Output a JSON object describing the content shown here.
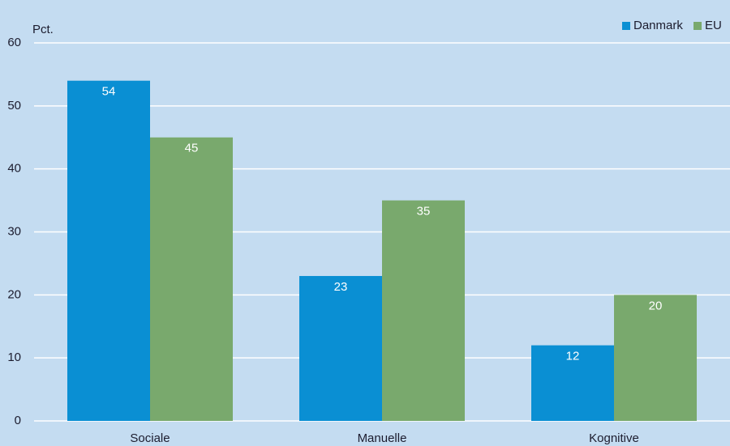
{
  "chart_data": {
    "type": "bar",
    "y_label": "Pct.",
    "categories": [
      "Sociale",
      "Manuelle",
      "Kognitive"
    ],
    "series": [
      {
        "name": "Danmark",
        "color": "#0a8fd3",
        "values": [
          54,
          23,
          12
        ]
      },
      {
        "name": "EU",
        "color": "#79a96d",
        "values": [
          45,
          35,
          20
        ]
      }
    ],
    "ylim": [
      0,
      60
    ],
    "yticks": [
      0,
      10,
      20,
      30,
      40,
      50,
      60
    ],
    "grid": true,
    "legend": "top-right"
  }
}
